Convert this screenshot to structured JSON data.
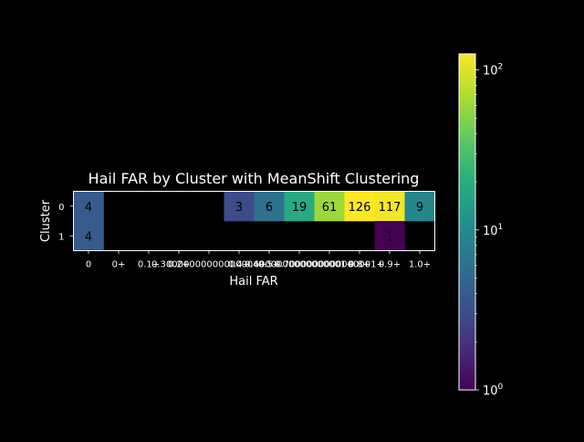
{
  "chart_data": {
    "type": "heatmap",
    "title": "Hail FAR by Cluster with MeanShift Clustering",
    "xlabel": "Hail FAR",
    "ylabel": "Cluster",
    "x_categories": [
      "0",
      "0+",
      "0.1+",
      "0.2+",
      "0.30000000000000004+",
      "0.4+",
      "0.5+",
      "0.6000000000000001+",
      "0.7000000000000001+",
      "0.8+",
      "0.9+",
      "1.0+"
    ],
    "y_categories": [
      "0",
      "1"
    ],
    "values": [
      [
        4,
        null,
        null,
        null,
        null,
        3,
        6,
        19,
        61,
        126,
        117,
        9
      ],
      [
        4,
        null,
        null,
        null,
        null,
        null,
        null,
        null,
        null,
        null,
        1,
        null
      ]
    ],
    "colorbar": {
      "scale": "log",
      "vmin": 1,
      "vmax": 126,
      "tick_base": "10",
      "tick_exponents": [
        "0",
        "1",
        "2"
      ],
      "colormap": "viridis"
    },
    "background": "#000000",
    "text_color": "#ffffff"
  }
}
